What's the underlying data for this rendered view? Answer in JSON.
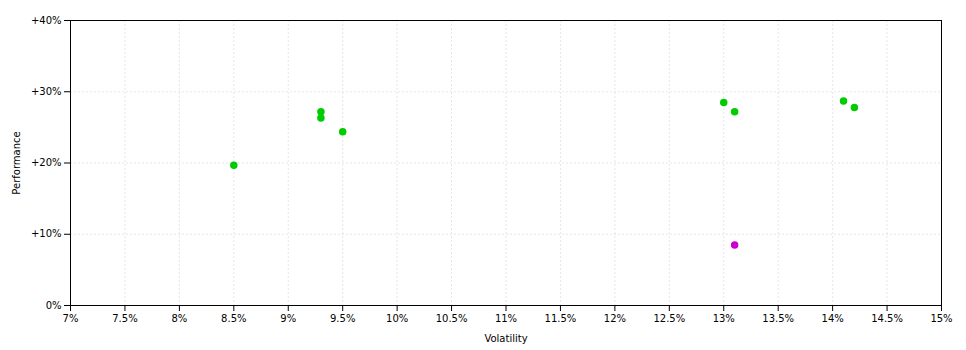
{
  "chart_data": {
    "type": "scatter",
    "xlabel": "Volatility",
    "ylabel": "Performance",
    "xlim": [
      0.07,
      0.15
    ],
    "ylim": [
      0.0,
      0.4
    ],
    "xticks": [
      {
        "value": 0.07,
        "label": "7%"
      },
      {
        "value": 0.075,
        "label": "7.5%"
      },
      {
        "value": 0.08,
        "label": "8%"
      },
      {
        "value": 0.085,
        "label": "8.5%"
      },
      {
        "value": 0.09,
        "label": "9%"
      },
      {
        "value": 0.095,
        "label": "9.5%"
      },
      {
        "value": 0.1,
        "label": "10%"
      },
      {
        "value": 0.105,
        "label": "10.5%"
      },
      {
        "value": 0.11,
        "label": "11%"
      },
      {
        "value": 0.115,
        "label": "11.5%"
      },
      {
        "value": 0.12,
        "label": "12%"
      },
      {
        "value": 0.125,
        "label": "12.5%"
      },
      {
        "value": 0.13,
        "label": "13%"
      },
      {
        "value": 0.135,
        "label": "13.5%"
      },
      {
        "value": 0.14,
        "label": "14%"
      },
      {
        "value": 0.145,
        "label": "14.5%"
      },
      {
        "value": 0.15,
        "label": "15%"
      }
    ],
    "yticks": [
      {
        "value": 0.0,
        "label": "0%"
      },
      {
        "value": 0.1,
        "label": "+10%"
      },
      {
        "value": 0.2,
        "label": "+20%"
      },
      {
        "value": 0.3,
        "label": "+30%"
      },
      {
        "value": 0.4,
        "label": "+40%"
      }
    ],
    "grid": true,
    "series": [
      {
        "color": "#00cc00",
        "x": [
          0.085,
          0.093,
          0.093,
          0.095,
          0.13,
          0.131,
          0.141,
          0.142
        ],
        "values": [
          0.197,
          0.272,
          0.263,
          0.244,
          0.285,
          0.272,
          0.287,
          0.278
        ]
      },
      {
        "color": "#cc00cc",
        "x": [
          0.131
        ],
        "values": [
          0.085
        ]
      }
    ]
  }
}
